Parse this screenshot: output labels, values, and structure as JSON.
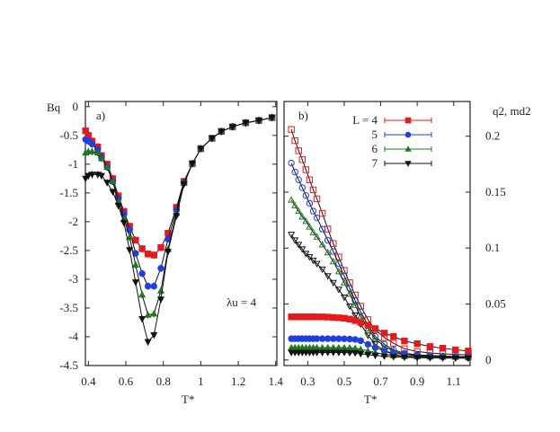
{
  "chart_data": [
    {
      "panel_label": "a)",
      "type": "line",
      "xlabel": "T*",
      "ylabel": "Bq",
      "xlim": [
        0.384,
        1.406
      ],
      "ylim": [
        -4.5,
        0.09
      ],
      "xticks": [
        "0.4",
        "0.6",
        "0.8",
        "1",
        "1.2",
        "1.4"
      ],
      "xtick_values": [
        0.4,
        0.6,
        0.8,
        1.0,
        1.2,
        1.4
      ],
      "yticks": [
        "0",
        "-0.5",
        "-1",
        "-1.5",
        "-2",
        "-2.5",
        "-3",
        "-3.5",
        "-4",
        "-4.5"
      ],
      "ytick_values": [
        0,
        -0.5,
        -1,
        -1.5,
        -2,
        -2.5,
        -3,
        -3.5,
        -4,
        -4.5
      ],
      "grid": false,
      "annotation": "λu = 4",
      "x": [
        0.385,
        0.4,
        0.42,
        0.45,
        0.47,
        0.5,
        0.53,
        0.56,
        0.59,
        0.62,
        0.652,
        0.687,
        0.718,
        0.75,
        0.787,
        0.825,
        0.87,
        0.91,
        0.955,
        1.0,
        1.06,
        1.11,
        1.17,
        1.24,
        1.31,
        1.38
      ],
      "series": [
        {
          "name": "L = 4",
          "color": "#e41a1c",
          "marker": "square",
          "values": [
            -0.42,
            -0.5,
            -0.6,
            -0.7,
            -0.85,
            -1.0,
            -1.25,
            -1.55,
            -1.82,
            -2.08,
            -2.32,
            -2.47,
            -2.56,
            -2.58,
            -2.45,
            -2.2,
            -1.75,
            -1.3,
            -0.99,
            -0.73,
            -0.55,
            -0.43,
            -0.35,
            -0.28,
            -0.24,
            -0.19
          ]
        },
        {
          "name": "5",
          "color": "#1f3fe0",
          "marker": "circle",
          "values": [
            -0.57,
            -0.6,
            -0.65,
            -0.75,
            -0.88,
            -1.05,
            -1.3,
            -1.6,
            -1.87,
            -2.14,
            -2.55,
            -2.9,
            -3.12,
            -3.12,
            -2.81,
            -2.3,
            -1.8,
            -1.32,
            -0.99,
            -0.73,
            -0.55,
            -0.43,
            -0.35,
            -0.28,
            -0.24,
            -0.19
          ]
        },
        {
          "name": "6",
          "color": "#1e7a1e",
          "marker": "triangle-up",
          "values": [
            -0.8,
            -0.78,
            -0.78,
            -0.8,
            -0.9,
            -1.05,
            -1.3,
            -1.65,
            -1.95,
            -2.27,
            -2.75,
            -3.27,
            -3.62,
            -3.6,
            -3.2,
            -2.48,
            -1.85,
            -1.33,
            -0.99,
            -0.73,
            -0.55,
            -0.43,
            -0.35,
            -0.28,
            -0.24,
            -0.19
          ]
        },
        {
          "name": "7",
          "color": "#111111",
          "marker": "triangle-down",
          "values": [
            -1.25,
            -1.2,
            -1.18,
            -1.18,
            -1.2,
            -1.32,
            -1.48,
            -1.72,
            -2.02,
            -2.49,
            -3.05,
            -3.69,
            -4.09,
            -3.97,
            -3.35,
            -2.52,
            -1.9,
            -1.35,
            -0.99,
            -0.73,
            -0.55,
            -0.43,
            -0.35,
            -0.28,
            -0.24,
            -0.19
          ]
        }
      ]
    },
    {
      "panel_label": "b)",
      "type": "line",
      "xlabel": "T*",
      "ylabel": "q2,  md2",
      "xlim": [
        0.17,
        1.19
      ],
      "ylim": [
        -0.005,
        0.231
      ],
      "xticks": [
        "0.3",
        "0.5",
        "0.7",
        "0.9",
        "1.1"
      ],
      "xtick_values": [
        0.3,
        0.5,
        0.7,
        0.9,
        1.1
      ],
      "yticks": [
        "0",
        "0.05",
        "0.1",
        "0.15",
        "0.2"
      ],
      "ytick_values": [
        0,
        0.05,
        0.1,
        0.15,
        0.2
      ],
      "grid": false,
      "legend_position": "top-right",
      "legend": [
        {
          "label": "L = 4",
          "color": "#e41a1c",
          "marker": "square"
        },
        {
          "label": "5",
          "color": "#1f3fe0",
          "marker": "circle"
        },
        {
          "label": "6",
          "color": "#1e7a1e",
          "marker": "triangle-up"
        },
        {
          "label": "7",
          "color": "#111111",
          "marker": "triangle-down"
        }
      ],
      "x": [
        0.21,
        0.23,
        0.25,
        0.27,
        0.29,
        0.31,
        0.33,
        0.35,
        0.38,
        0.41,
        0.44,
        0.47,
        0.5,
        0.53,
        0.56,
        0.59,
        0.63,
        0.67,
        0.72,
        0.77,
        0.83,
        0.9,
        0.97,
        1.04,
        1.11,
        1.18
      ],
      "series": [
        {
          "quantity": "q2",
          "L": "4",
          "color": "#e41a1c",
          "marker": "square",
          "open": true,
          "values": [
            0.206,
            0.196,
            0.187,
            0.179,
            0.17,
            0.161,
            0.152,
            0.144,
            0.131,
            0.117,
            0.104,
            0.092,
            0.08,
            0.069,
            0.058,
            0.048,
            0.036,
            0.027,
            0.02,
            0.015,
            0.01,
            0.0075,
            0.0062,
            0.0054,
            0.005,
            0.0045
          ]
        },
        {
          "quantity": "q2",
          "L": "5",
          "color": "#1f3fe0",
          "marker": "circle",
          "open": true,
          "values": [
            0.176,
            0.168,
            0.161,
            0.154,
            0.147,
            0.14,
            0.133,
            0.127,
            0.117,
            0.107,
            0.097,
            0.086,
            0.075,
            0.064,
            0.053,
            0.043,
            0.031,
            0.021,
            0.014,
            0.009,
            0.006,
            0.0045,
            0.004,
            0.0035,
            0.003,
            0.003
          ]
        },
        {
          "quantity": "q2",
          "L": "6",
          "color": "#1e7a1e",
          "marker": "triangle-up",
          "open": true,
          "values": [
            0.143,
            0.138,
            0.133,
            0.128,
            0.124,
            0.119,
            0.114,
            0.11,
            0.103,
            0.096,
            0.088,
            0.079,
            0.069,
            0.059,
            0.049,
            0.039,
            0.028,
            0.019,
            0.012,
            0.008,
            0.005,
            0.0038,
            0.0032,
            0.003,
            0.0027,
            0.0026
          ]
        },
        {
          "quantity": "q2",
          "L": "7",
          "color": "#111111",
          "marker": "triangle-down",
          "open": true,
          "values": [
            0.112,
            0.107,
            0.103,
            0.099,
            0.095,
            0.092,
            0.089,
            0.086,
            0.081,
            0.075,
            0.069,
            0.063,
            0.056,
            0.048,
            0.04,
            0.032,
            0.022,
            0.014,
            0.008,
            0.005,
            0.003,
            0.0022,
            0.002,
            0.0018,
            0.0017,
            0.0016
          ]
        },
        {
          "quantity": "md2",
          "L": "4",
          "color": "#e41a1c",
          "marker": "square",
          "open": false,
          "values": [
            0.0385,
            0.0385,
            0.0385,
            0.0385,
            0.0385,
            0.0385,
            0.0385,
            0.0385,
            0.0385,
            0.0383,
            0.038,
            0.0377,
            0.0373,
            0.0365,
            0.0352,
            0.0335,
            0.031,
            0.028,
            0.024,
            0.021,
            0.017,
            0.0145,
            0.012,
            0.0105,
            0.009,
            0.008
          ]
        },
        {
          "quantity": "md2",
          "L": "5",
          "color": "#1f3fe0",
          "marker": "circle",
          "open": false,
          "values": [
            0.019,
            0.019,
            0.019,
            0.019,
            0.019,
            0.019,
            0.019,
            0.019,
            0.019,
            0.019,
            0.019,
            0.019,
            0.0189,
            0.0187,
            0.0183,
            0.0172,
            0.014,
            0.011,
            0.008,
            0.006,
            0.005,
            0.004,
            0.0035,
            0.003,
            0.003,
            0.003
          ]
        },
        {
          "quantity": "md2",
          "L": "6",
          "color": "#1e7a1e",
          "marker": "triangle-up",
          "open": false,
          "values": [
            0.011,
            0.011,
            0.011,
            0.011,
            0.011,
            0.011,
            0.011,
            0.011,
            0.011,
            0.011,
            0.011,
            0.011,
            0.011,
            0.0108,
            0.0105,
            0.0095,
            0.008,
            0.0065,
            0.005,
            0.004,
            0.0033,
            0.003,
            0.0028,
            0.0027,
            0.0026,
            0.0026
          ]
        },
        {
          "quantity": "md2",
          "L": "7",
          "color": "#111111",
          "marker": "triangle-down",
          "open": false,
          "values": [
            0.0066,
            0.0066,
            0.0066,
            0.0066,
            0.0066,
            0.0066,
            0.0066,
            0.0066,
            0.0066,
            0.0066,
            0.0066,
            0.0066,
            0.0066,
            0.0064,
            0.0062,
            0.0055,
            0.0047,
            0.004,
            0.0033,
            0.0028,
            0.0024,
            0.002,
            0.0018,
            0.0017,
            0.0016,
            0.0016
          ]
        }
      ]
    }
  ]
}
